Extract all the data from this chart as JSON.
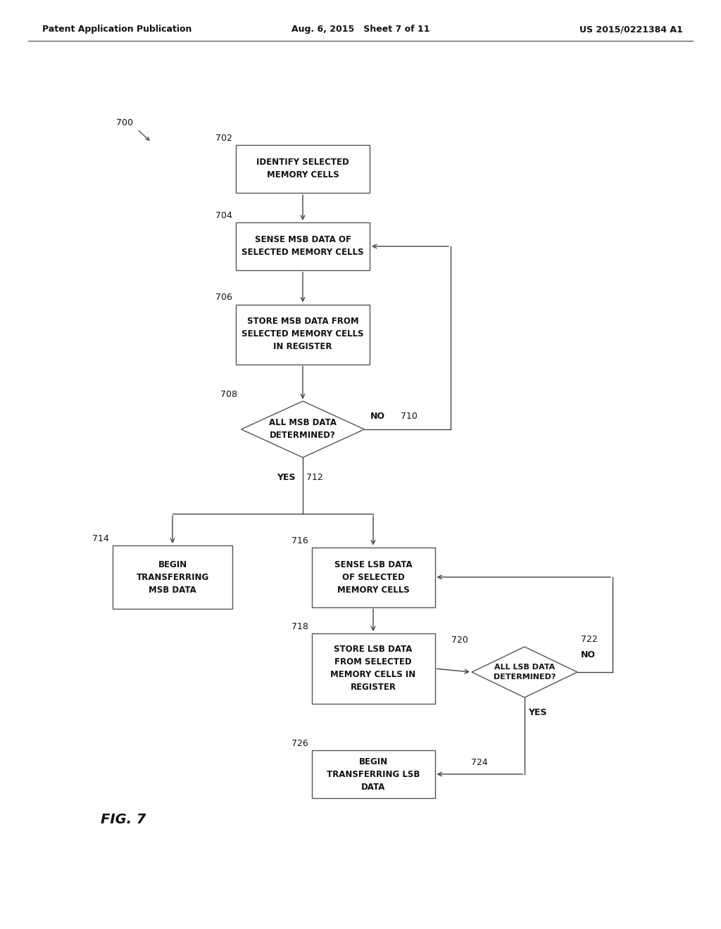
{
  "bg_color": "#ffffff",
  "header": {
    "left": "Patent Application Publication",
    "center": "Aug. 6, 2015   Sheet 7 of 11",
    "right": "US 2015/0221384 A1"
  },
  "fig_label": "FIG. 7",
  "diagram_label": "700"
}
